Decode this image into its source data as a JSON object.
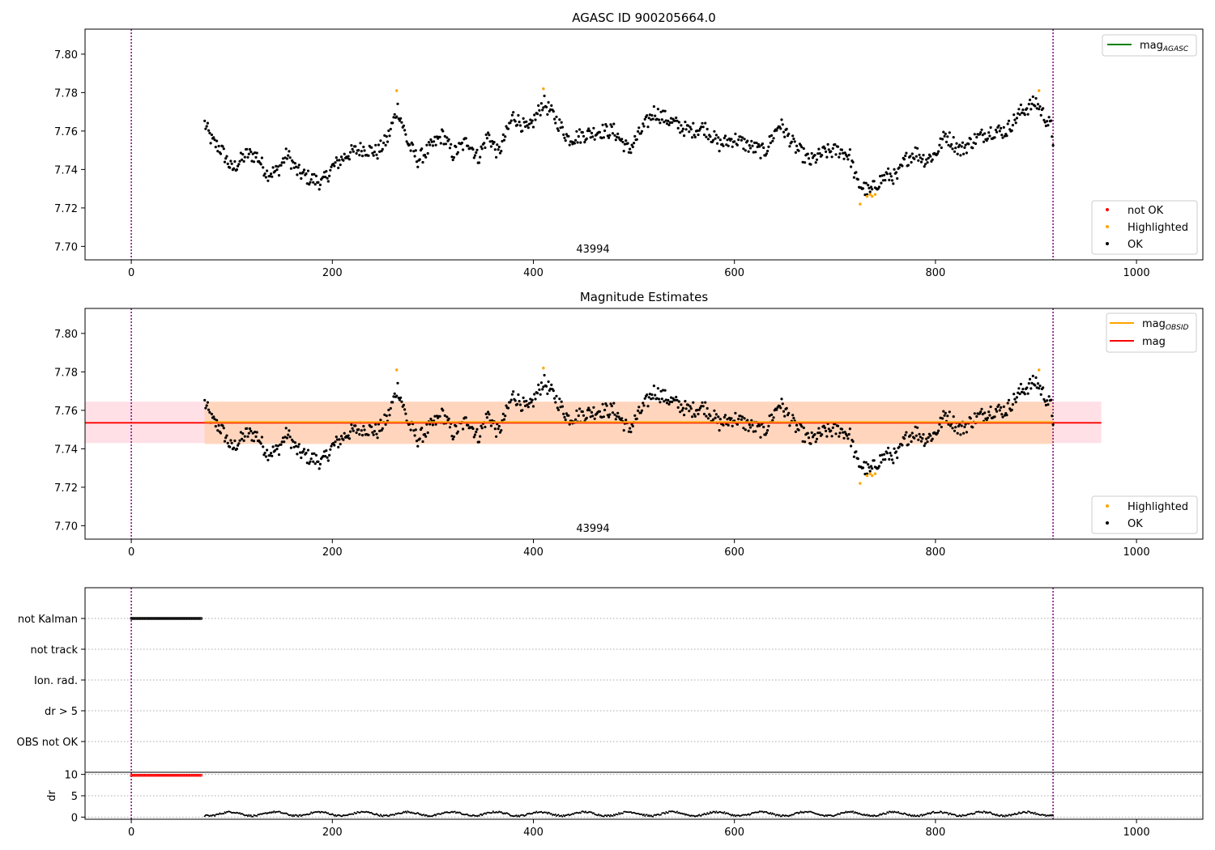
{
  "chart_data": [
    {
      "type": "scatter",
      "title": "AGASC ID 900205664.0",
      "xlim": [
        -46,
        1066
      ],
      "ylim": [
        7.693,
        7.813
      ],
      "x_ticks": [
        0,
        200,
        400,
        600,
        800,
        1000
      ],
      "y_ticks": [
        7.7,
        7.72,
        7.74,
        7.76,
        7.78,
        7.8
      ],
      "obsid_label": "43994",
      "vlines": [
        0,
        917
      ],
      "grid": false,
      "curve": {
        "x_range": [
          73,
          917
        ],
        "anchors": [
          [
            73,
            7.764
          ],
          [
            80,
            7.755
          ],
          [
            90,
            7.75
          ],
          [
            100,
            7.74
          ],
          [
            115,
            7.748
          ],
          [
            125,
            7.747
          ],
          [
            135,
            7.738
          ],
          [
            145,
            7.739
          ],
          [
            155,
            7.748
          ],
          [
            165,
            7.739
          ],
          [
            175,
            7.736
          ],
          [
            190,
            7.733
          ],
          [
            200,
            7.741
          ],
          [
            215,
            7.748
          ],
          [
            230,
            7.751
          ],
          [
            245,
            7.749
          ],
          [
            255,
            7.756
          ],
          [
            265,
            7.772
          ],
          [
            275,
            7.754
          ],
          [
            285,
            7.745
          ],
          [
            295,
            7.75
          ],
          [
            310,
            7.758
          ],
          [
            320,
            7.748
          ],
          [
            335,
            7.755
          ],
          [
            345,
            7.746
          ],
          [
            355,
            7.758
          ],
          [
            365,
            7.748
          ],
          [
            380,
            7.768
          ],
          [
            395,
            7.76
          ],
          [
            410,
            7.775
          ],
          [
            420,
            7.768
          ],
          [
            435,
            7.756
          ],
          [
            450,
            7.758
          ],
          [
            465,
            7.76
          ],
          [
            480,
            7.76
          ],
          [
            495,
            7.75
          ],
          [
            510,
            7.762
          ],
          [
            520,
            7.77
          ],
          [
            540,
            7.764
          ],
          [
            555,
            7.76
          ],
          [
            570,
            7.762
          ],
          [
            585,
            7.753
          ],
          [
            600,
            7.756
          ],
          [
            615,
            7.752
          ],
          [
            630,
            7.749
          ],
          [
            645,
            7.764
          ],
          [
            660,
            7.752
          ],
          [
            675,
            7.744
          ],
          [
            690,
            7.749
          ],
          [
            705,
            7.75
          ],
          [
            715,
            7.747
          ],
          [
            722,
            7.733
          ],
          [
            735,
            7.728
          ],
          [
            742,
            7.733
          ],
          [
            752,
            7.737
          ],
          [
            762,
            7.736
          ],
          [
            770,
            7.745
          ],
          [
            780,
            7.749
          ],
          [
            790,
            7.745
          ],
          [
            800,
            7.748
          ],
          [
            810,
            7.758
          ],
          [
            825,
            7.75
          ],
          [
            840,
            7.756
          ],
          [
            855,
            7.76
          ],
          [
            870,
            7.76
          ],
          [
            885,
            7.77
          ],
          [
            900,
            7.775
          ],
          [
            915,
            7.762
          ],
          [
            917,
            7.755
          ]
        ],
        "noise_amplitude": 0.004
      },
      "highlighted_points": [
        [
          264,
          7.781
        ],
        [
          410,
          7.782
        ],
        [
          725,
          7.722
        ],
        [
          732,
          7.726
        ],
        [
          735,
          7.727
        ],
        [
          737,
          7.726
        ],
        [
          740,
          7.727
        ],
        [
          903,
          7.781
        ]
      ],
      "legend": [
        {
          "label": "mag",
          "subscript": "AGASC",
          "marker": "line",
          "color": "#008000",
          "position": "upper-right"
        },
        {
          "label": "not OK",
          "marker": "dot",
          "color": "#ff0000",
          "position": "lower-right"
        },
        {
          "label": "Highlighted",
          "marker": "dot",
          "color": "#ffa500",
          "position": "lower-right"
        },
        {
          "label": "OK",
          "marker": "dot",
          "color": "#000000",
          "position": "lower-right"
        }
      ]
    },
    {
      "type": "scatter",
      "title": "Magnitude Estimates",
      "xlim": [
        -46,
        1066
      ],
      "ylim": [
        7.693,
        7.813
      ],
      "x_ticks": [
        0,
        200,
        400,
        600,
        800,
        1000
      ],
      "y_ticks": [
        7.7,
        7.72,
        7.74,
        7.76,
        7.78,
        7.8
      ],
      "obsid_label": "43994",
      "vlines": [
        0,
        917
      ],
      "mag_line": 7.7535,
      "mag_band": {
        "x_range": [
          -46,
          965
        ],
        "y_range": [
          7.743,
          7.7645
        ],
        "color": "#ffd8e0"
      },
      "mag_obsid_line": {
        "x_range": [
          73,
          917
        ],
        "y": 7.7535
      },
      "mag_obsid_band": {
        "x_range": [
          73,
          917
        ],
        "y_range": [
          7.7425,
          7.7645
        ],
        "color": "#ffd5b8"
      },
      "legend": [
        {
          "label": "mag",
          "subscript": "OBSID",
          "marker": "line",
          "color": "#ffa500",
          "position": "upper-right"
        },
        {
          "label": "mag",
          "subscript": "",
          "marker": "line",
          "color": "#ff0000",
          "position": "upper-right"
        },
        {
          "label": "Highlighted",
          "marker": "dot",
          "color": "#ffa500",
          "position": "lower-right"
        },
        {
          "label": "OK",
          "marker": "dot",
          "color": "#000000",
          "position": "lower-right"
        }
      ]
    },
    {
      "type": "scatter",
      "title": "",
      "xlim": [
        -46,
        1066
      ],
      "flag_categories": [
        "not Kalman",
        "not track",
        "Ion. rad.",
        "dr > 5",
        "OBS not OK"
      ],
      "flag_points": [
        {
          "category": "not Kalman",
          "x_range": [
            0,
            70
          ]
        }
      ],
      "vlines": [
        0,
        917
      ],
      "grid": "horizontal-dotted"
    },
    {
      "type": "scatter",
      "title": "",
      "ylabel": "dr",
      "xlim": [
        -46,
        1066
      ],
      "ylim": [
        -0.5,
        10.5
      ],
      "x_ticks": [
        0,
        200,
        400,
        600,
        800,
        1000
      ],
      "y_ticks": [
        0,
        5,
        10
      ],
      "red_points": {
        "x_range": [
          0,
          70
        ],
        "y": 9.8
      },
      "black_points": {
        "x_range": [
          73,
          917
        ],
        "y_min": 0.1,
        "y_max": 1.8
      },
      "vlines": [
        0,
        917
      ]
    }
  ]
}
